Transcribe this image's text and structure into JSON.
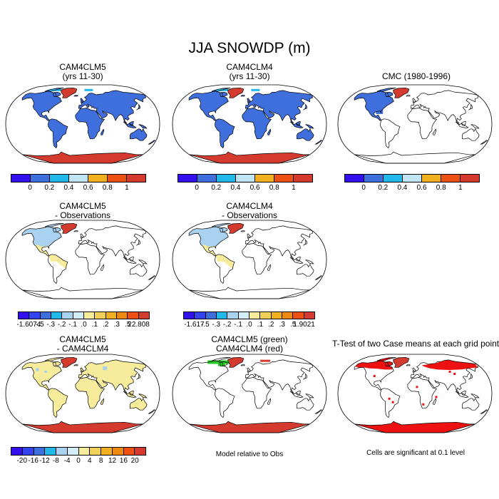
{
  "title": "JJA SNOWDP (m)",
  "colors": {
    "ocean": "#ffffff",
    "coast": "#000000",
    "blue": "#3f6fdc",
    "pale_yellow": "#f7eb9c",
    "light_blue": "#a8d2f0",
    "red": "#d43a2e",
    "bright_red": "#ee1111",
    "green": "#22cc22"
  },
  "panels": [
    {
      "id": "p1",
      "title_lines": [
        "CAM4CLM5",
        "(yrs 11-30)"
      ],
      "land": "#3f6fdc",
      "features": [
        "antarctica-red",
        "greenland-red",
        "arctic-cyan"
      ]
    },
    {
      "id": "p2",
      "title_lines": [
        "CAM4CLM4",
        "(yrs 11-30)"
      ],
      "land": "#3f6fdc",
      "features": [
        "antarctica-red",
        "greenland-red",
        "arctic-cyan"
      ]
    },
    {
      "id": "p3",
      "title_lines": [
        "CMC (1980-1996)"
      ],
      "land": "",
      "features": [
        "namerica-blue"
      ]
    },
    {
      "id": "p4",
      "title_lines": [
        "CAM4CLM5",
        "- Observations"
      ],
      "land": "",
      "features": [
        "namerica-diff",
        "greenland-red"
      ]
    },
    {
      "id": "p5",
      "title_lines": [
        "CAM4CLM4",
        "- Observations"
      ],
      "land": "",
      "features": [
        "namerica-diff",
        "greenland-red"
      ]
    },
    {
      "id": "p7",
      "title_lines": [
        "CAM4CLM5",
        "- CAM4CLM4"
      ],
      "land": "#f7eb9c",
      "features": [
        "antarctica-red",
        "greenland-red",
        "diff-dots"
      ]
    },
    {
      "id": "p8",
      "title_lines": [
        "CAM4CLM5 (green)",
        "CAM4CLM4 (red)"
      ],
      "land": "",
      "features": [
        "overlay-arctic"
      ]
    },
    {
      "id": "p9",
      "title_lines": [
        "T-Test of two Case means at each grid point"
      ],
      "land": "",
      "features": [
        "ttest"
      ]
    }
  ],
  "colorbars": [
    {
      "id": "cb1",
      "colors": [
        "#3311ee",
        "#3f6fdc",
        "#22b8ea",
        "#bfe4f3",
        "#f2b021",
        "#ee5011",
        "#d43a2e"
      ],
      "labels": [
        "0",
        "0.2",
        "0.4",
        "0.6",
        "0.8",
        "1"
      ]
    },
    {
      "id": "cb2",
      "colors": [
        "#3311ee",
        "#3f6fdc",
        "#22b8ea",
        "#bfe4f3",
        "#f2b021",
        "#ee5011",
        "#d43a2e"
      ],
      "labels": [
        "0",
        "0.2",
        "0.4",
        "0.6",
        "0.8",
        "1"
      ]
    },
    {
      "id": "cb3",
      "colors": [
        "#3311ee",
        "#3f6fdc",
        "#22b8ea",
        "#bfe4f3",
        "#f2b021",
        "#ee5011",
        "#d43a2e"
      ],
      "labels": [
        "0",
        "0.2",
        "0.4",
        "0.6",
        "0.8",
        "1"
      ]
    },
    {
      "id": "cb4",
      "colors": [
        "#3311ee",
        "#3344ee",
        "#3f6fdc",
        "#22b8ea",
        "#a8d2f0",
        "#d2ecf8",
        "#f7eb9c",
        "#f2d05a",
        "#f2b021",
        "#ee8a11",
        "#ee5011",
        "#d43a2e"
      ],
      "labels": [
        "-1.6074",
        "-.5",
        "-.3",
        "-.2",
        "-.1",
        ".0",
        ".1",
        ".2",
        ".3",
        ".5",
        "22.808"
      ]
    },
    {
      "id": "cb5",
      "colors": [
        "#3311ee",
        "#3344ee",
        "#3f6fdc",
        "#22b8ea",
        "#a8d2f0",
        "#d2ecf8",
        "#f7eb9c",
        "#f2d05a",
        "#f2b021",
        "#ee8a11",
        "#ee5011",
        "#d43a2e"
      ],
      "labels": [
        "-1.617",
        "-.5",
        "-.3",
        "-.2",
        "-.1",
        ".0",
        ".1",
        ".2",
        ".3",
        ".5",
        "1.9021"
      ]
    },
    {
      "id": "cb7",
      "colors": [
        "#3311ee",
        "#3344ee",
        "#3f6fdc",
        "#22b8ea",
        "#a8d2f0",
        "#d2ecf8",
        "#f7eb9c",
        "#f2d05a",
        "#f2b021",
        "#ee8a11",
        "#ee5011",
        "#d43a2e"
      ],
      "labels": [
        "-20",
        "-16",
        "-12",
        "-8",
        "-4",
        "0",
        "4",
        "8",
        "12",
        "16",
        "20"
      ]
    }
  ],
  "notes": {
    "model_relative": "Model relative to Obs",
    "significance": "Cells are significant at 0.1 level"
  }
}
